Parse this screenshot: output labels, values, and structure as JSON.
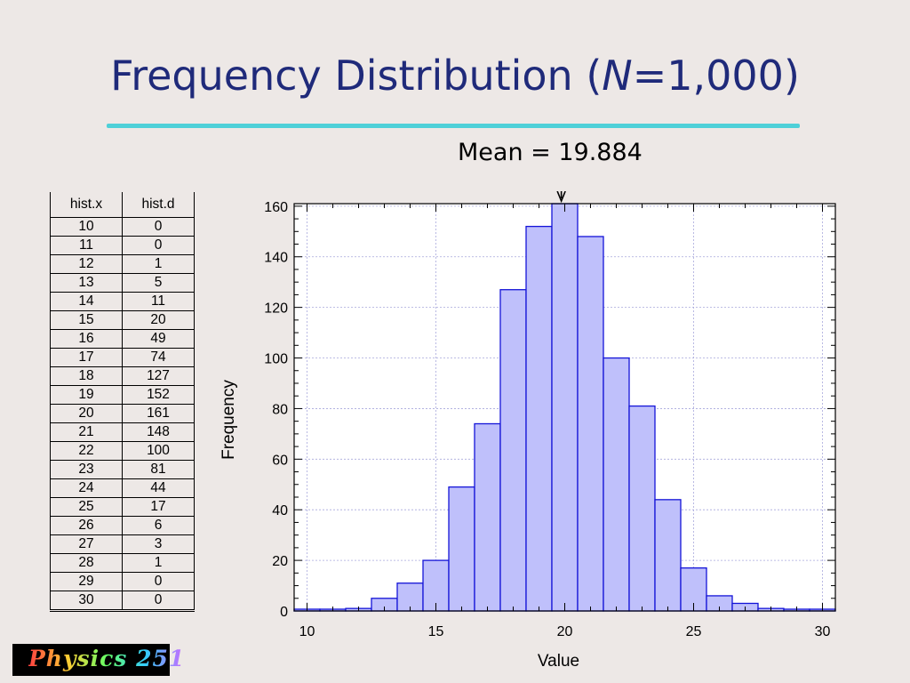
{
  "slide": {
    "title_prefix": "Frequency Distribution (",
    "title_italic": "N",
    "title_suffix": "=1,000)",
    "mean_label": "Mean = 19.884",
    "badge_text": "Physics 251"
  },
  "table": {
    "headers": [
      "hist.x",
      "hist.d"
    ],
    "rows": [
      [
        "10",
        "0"
      ],
      [
        "11",
        "0"
      ],
      [
        "12",
        "1"
      ],
      [
        "13",
        "5"
      ],
      [
        "14",
        "11"
      ],
      [
        "15",
        "20"
      ],
      [
        "16",
        "49"
      ],
      [
        "17",
        "74"
      ],
      [
        "18",
        "127"
      ],
      [
        "19",
        "152"
      ],
      [
        "20",
        "161"
      ],
      [
        "21",
        "148"
      ],
      [
        "22",
        "100"
      ],
      [
        "23",
        "81"
      ],
      [
        "24",
        "44"
      ],
      [
        "25",
        "17"
      ],
      [
        "26",
        "6"
      ],
      [
        "27",
        "3"
      ],
      [
        "28",
        "1"
      ],
      [
        "29",
        "0"
      ],
      [
        "30",
        "0"
      ]
    ]
  },
  "chart_data": {
    "type": "bar",
    "title": "",
    "xlabel": "Value",
    "ylabel": "Frequency",
    "x": [
      10,
      11,
      12,
      13,
      14,
      15,
      16,
      17,
      18,
      19,
      20,
      21,
      22,
      23,
      24,
      25,
      26,
      27,
      28,
      29,
      30
    ],
    "values": [
      0,
      0,
      1,
      5,
      11,
      20,
      49,
      74,
      127,
      152,
      161,
      148,
      100,
      81,
      44,
      17,
      6,
      3,
      1,
      0,
      0
    ],
    "xlim": [
      9.5,
      30.5
    ],
    "ylim": [
      0,
      161
    ],
    "xticks": [
      10,
      15,
      20,
      25,
      30
    ],
    "yticks": [
      0,
      20,
      40,
      60,
      80,
      100,
      120,
      140,
      160
    ],
    "mean": 19.884,
    "grid": true,
    "colors": {
      "bar_fill": "#bfc0fb",
      "bar_edge": "#1414d8",
      "grid": "#a8a8dc"
    }
  }
}
